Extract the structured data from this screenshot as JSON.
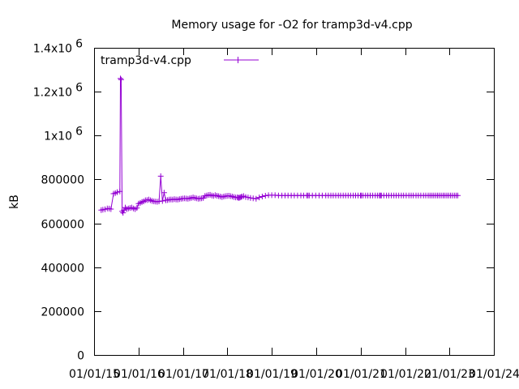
{
  "chart_data": {
    "type": "line",
    "title": "Memory usage for -O2 for tramp3d-v4.cpp",
    "xlabel": "",
    "ylabel": "kB",
    "legend": {
      "position": "top-left",
      "entries": [
        "tramp3d-v4.cpp"
      ]
    },
    "color": "#9400d3",
    "marker": "plus",
    "grid": false,
    "ylim": [
      0,
      1400000
    ],
    "xlim": [
      "2015-01-01",
      "2024-01-01"
    ],
    "y_ticks": [
      {
        "value": 0,
        "label": "0"
      },
      {
        "value": 200000,
        "label": "200000"
      },
      {
        "value": 400000,
        "label": "400000"
      },
      {
        "value": 600000,
        "label": "600000"
      },
      {
        "value": 800000,
        "label": "800000"
      },
      {
        "value": 1000000,
        "label": "1x10",
        "exp": "6"
      },
      {
        "value": 1200000,
        "label": "1.2x10",
        "exp": "6"
      },
      {
        "value": 1400000,
        "label": "1.4x10",
        "exp": "6"
      }
    ],
    "x_ticks": [
      {
        "value": "2015-01-01",
        "label": "01/01/15"
      },
      {
        "value": "2016-01-01",
        "label": "01/01/16"
      },
      {
        "value": "2017-01-01",
        "label": "01/01/17"
      },
      {
        "value": "2018-01-01",
        "label": "01/01/18"
      },
      {
        "value": "2019-01-01",
        "label": "01/01/19"
      },
      {
        "value": "2020-01-01",
        "label": "01/01/20"
      },
      {
        "value": "2021-01-01",
        "label": "01/01/21"
      },
      {
        "value": "2022-01-01",
        "label": "01/01/22"
      },
      {
        "value": "2023-01-01",
        "label": "01/01/23"
      },
      {
        "value": "2024-01-01",
        "label": "01/01/24"
      }
    ],
    "series": [
      {
        "name": "tramp3d-v4.cpp",
        "x": [
          "2015-03-01",
          "2015-03-15",
          "2015-04-01",
          "2015-04-20",
          "2015-05-05",
          "2015-05-20",
          "2015-06-10",
          "2015-06-25",
          "2015-07-10",
          "2015-08-01",
          "2015-08-06",
          "2015-08-12",
          "2015-08-20",
          "2015-08-27",
          "2015-09-03",
          "2015-09-15",
          "2015-09-26",
          "2015-10-10",
          "2015-10-24",
          "2015-11-07",
          "2015-11-21",
          "2015-12-05",
          "2015-12-19",
          "2016-01-02",
          "2016-01-16",
          "2016-01-30",
          "2016-02-13",
          "2016-02-27",
          "2016-03-12",
          "2016-03-26",
          "2016-04-09",
          "2016-04-23",
          "2016-05-07",
          "2016-05-21",
          "2016-06-04",
          "2016-06-18",
          "2016-07-02",
          "2016-07-16",
          "2016-07-30",
          "2016-08-13",
          "2016-08-27",
          "2016-09-10",
          "2016-09-24",
          "2016-10-08",
          "2016-10-22",
          "2016-11-05",
          "2016-11-19",
          "2016-12-03",
          "2016-12-17",
          "2016-12-31",
          "2017-01-14",
          "2017-01-28",
          "2017-02-11",
          "2017-02-25",
          "2017-03-11",
          "2017-03-25",
          "2017-04-08",
          "2017-04-22",
          "2017-05-06",
          "2017-05-20",
          "2017-06-03",
          "2017-06-17",
          "2017-07-01",
          "2017-07-15",
          "2017-07-29",
          "2017-08-12",
          "2017-08-26",
          "2017-09-09",
          "2017-09-23",
          "2017-10-07",
          "2017-10-21",
          "2017-11-04",
          "2017-11-18",
          "2017-12-02",
          "2017-12-16",
          "2017-12-30",
          "2018-01-13",
          "2018-01-27",
          "2018-02-10",
          "2018-02-24",
          "2018-03-10",
          "2018-03-24",
          "2018-04-01",
          "2018-04-07",
          "2018-04-15",
          "2018-04-23",
          "2018-05-01",
          "2018-05-15",
          "2018-06-01",
          "2018-06-20",
          "2018-07-10",
          "2018-08-01",
          "2018-08-25",
          "2018-09-20",
          "2018-10-15",
          "2018-11-10",
          "2018-12-05",
          "2019-01-01",
          "2019-01-28",
          "2019-02-25",
          "2019-03-25",
          "2019-04-20",
          "2019-05-15",
          "2019-06-10",
          "2019-07-05",
          "2019-08-01",
          "2019-08-28",
          "2019-09-20",
          "2019-10-15",
          "2019-10-25",
          "2019-11-05",
          "2019-12-01",
          "2019-12-28",
          "2020-01-25",
          "2020-02-20",
          "2020-03-20",
          "2020-04-10",
          "2020-05-01",
          "2020-05-20",
          "2020-06-10",
          "2020-07-01",
          "2020-07-20",
          "2020-08-10",
          "2020-08-30",
          "2020-09-20",
          "2020-10-10",
          "2020-11-01",
          "2020-11-20",
          "2020-12-10",
          "2020-12-31",
          "2021-01-06",
          "2021-01-20",
          "2021-02-10",
          "2021-03-01",
          "2021-03-20",
          "2021-04-10",
          "2021-05-01",
          "2021-05-20",
          "2021-06-05",
          "2021-06-12",
          "2021-06-20",
          "2021-07-10",
          "2021-08-01",
          "2021-08-20",
          "2021-09-10",
          "2021-10-01",
          "2021-10-20",
          "2021-11-10",
          "2021-12-01",
          "2021-12-20",
          "2022-01-10",
          "2022-02-01",
          "2022-02-20",
          "2022-03-10",
          "2022-04-01",
          "2022-04-20",
          "2022-05-10",
          "2022-06-01",
          "2022-06-20",
          "2022-07-10",
          "2022-07-25",
          "2022-08-10",
          "2022-08-25",
          "2022-09-10",
          "2022-09-25",
          "2022-10-10",
          "2022-10-25",
          "2022-11-10",
          "2022-11-25",
          "2022-12-10",
          "2022-12-25",
          "2023-01-10",
          "2023-01-25",
          "2023-02-10",
          "2023-02-25",
          "2023-03-10"
        ],
        "y": [
          660000,
          662000,
          664000,
          668000,
          667000,
          665000,
          735000,
          738000,
          742000,
          745000,
          1260000,
          1255000,
          655000,
          648000,
          660000,
          672000,
          665000,
          668000,
          670000,
          672000,
          668000,
          665000,
          670000,
          690000,
          693000,
          697000,
          700000,
          705000,
          706000,
          708000,
          705000,
          702000,
          700000,
          699000,
          698000,
          700000,
          815000,
          702000,
          740000,
          705000,
          706000,
          708000,
          709000,
          708000,
          710000,
          709000,
          708000,
          710000,
          712000,
          713000,
          714000,
          713000,
          712000,
          714000,
          716000,
          718000,
          716000,
          714000,
          712000,
          713000,
          714000,
          716000,
          725000,
          727000,
          729000,
          730000,
          727000,
          725000,
          728000,
          726000,
          724000,
          722000,
          720000,
          722000,
          724000,
          725000,
          726000,
          724000,
          722000,
          720000,
          718000,
          718000,
          717000,
          716000,
          718000,
          720000,
          722000,
          724000,
          720000,
          718000,
          716000,
          714000,
          712000,
          718000,
          722000,
          726000,
          728000,
          728000,
          728000,
          727000,
          727000,
          727000,
          727000,
          727000,
          727000,
          727000,
          727000,
          727000,
          727000,
          727000,
          727000,
          727000,
          727000,
          727000,
          727000,
          727000,
          727000,
          727000,
          727000,
          727000,
          727000,
          727000,
          727000,
          727000,
          727000,
          727000,
          727000,
          727000,
          727000,
          727000,
          727000,
          727000,
          727000,
          727000,
          727000,
          727000,
          727000,
          727000,
          727000,
          727000,
          727000,
          727000,
          727000,
          727000,
          727000,
          727000,
          727000,
          727000,
          727000,
          727000,
          727000,
          727000,
          727000,
          727000,
          727000,
          727000,
          727000,
          727000,
          727000,
          727000,
          727000,
          727000,
          727000,
          727000,
          727000,
          727000,
          727000,
          727000,
          727000,
          727000,
          727000,
          727000,
          727000,
          727000,
          727000,
          727000
        ]
      }
    ]
  }
}
